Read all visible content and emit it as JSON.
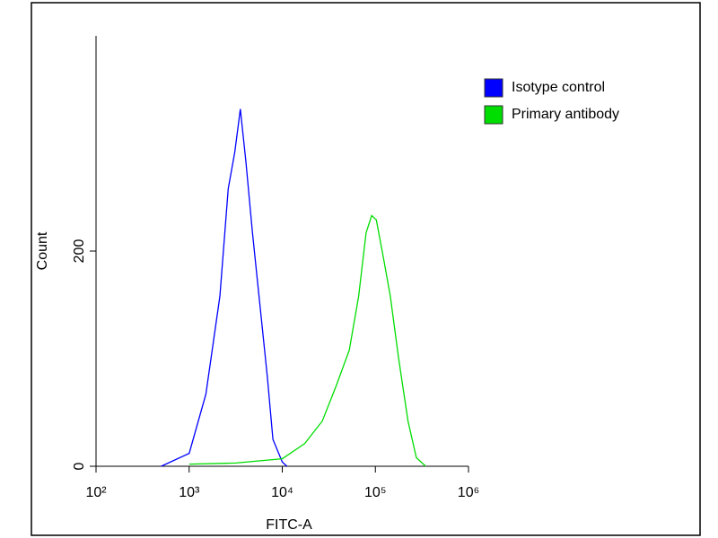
{
  "chart_data": {
    "type": "line",
    "xlabel": "FITC-A",
    "ylabel": "Count",
    "xscale": "log",
    "xlim": [
      100,
      1000000
    ],
    "xticks": [
      {
        "value": 100,
        "label": "10²"
      },
      {
        "value": 1000,
        "label": "10³"
      },
      {
        "value": 10000,
        "label": "10⁴"
      },
      {
        "value": 100000,
        "label": "10⁵"
      },
      {
        "value": 1000000,
        "label": "10⁶"
      }
    ],
    "ylim": [
      0,
      400
    ],
    "yticks": [
      0,
      200
    ],
    "legend": "upper right",
    "series": [
      {
        "name": "Isotype control",
        "color": "#0000ff",
        "x": [
          501,
          1000,
          1514,
          2138,
          2630,
          3090,
          3548,
          4074,
          4786,
          5754,
          6918,
          7943,
          10000,
          11220
        ],
        "values": [
          0,
          12,
          67,
          158,
          258,
          292,
          332,
          283,
          217,
          150,
          83,
          25,
          4,
          0
        ]
      },
      {
        "name": "Primary antibody",
        "color": "#00dd00",
        "x": [
          1000,
          3162,
          10000,
          17378,
          26915,
          38019,
          52481,
          66069,
          79433,
          91201,
          102329,
          123027,
          144544,
          177828,
          223872,
          275423,
          346737
        ],
        "values": [
          2,
          3,
          7,
          21,
          42,
          75,
          108,
          158,
          217,
          233,
          229,
          192,
          158,
          100,
          42,
          8,
          0
        ]
      }
    ]
  }
}
